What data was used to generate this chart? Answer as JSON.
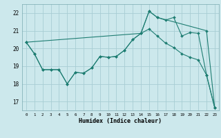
{
  "xlabel": "Humidex (Indice chaleur)",
  "background_color": "#cce8ec",
  "grid_color": "#a8cdd4",
  "line_color": "#1e7d72",
  "xlim": [
    -0.5,
    23.5
  ],
  "ylim": [
    16.5,
    22.5
  ],
  "yticks": [
    17,
    18,
    19,
    20,
    21,
    22
  ],
  "xticks": [
    0,
    1,
    2,
    3,
    4,
    5,
    6,
    7,
    8,
    9,
    10,
    11,
    12,
    13,
    14,
    15,
    16,
    17,
    18,
    19,
    20,
    21,
    22,
    23
  ],
  "series": [
    {
      "x": [
        0,
        1,
        2,
        3,
        4,
        5,
        6,
        7,
        8,
        9,
        10,
        11,
        12,
        13,
        14,
        15,
        16,
        22,
        23
      ],
      "y": [
        20.35,
        19.7,
        18.8,
        18.8,
        18.8,
        18.0,
        18.65,
        18.6,
        18.9,
        19.55,
        19.5,
        19.55,
        19.9,
        20.5,
        20.85,
        22.1,
        21.75,
        21.0,
        16.65
      ]
    },
    {
      "x": [
        0,
        14,
        15,
        16,
        17,
        18,
        19,
        20,
        21,
        22,
        23
      ],
      "y": [
        20.35,
        20.85,
        22.1,
        21.75,
        21.6,
        21.75,
        20.7,
        20.9,
        20.85,
        18.5,
        16.65
      ]
    },
    {
      "x": [
        0,
        1,
        2,
        3,
        4,
        5,
        6,
        7,
        8,
        9,
        10,
        11,
        12,
        13,
        14,
        15,
        16,
        17,
        18,
        19,
        20,
        21,
        22,
        23
      ],
      "y": [
        20.35,
        19.7,
        18.8,
        18.8,
        18.8,
        18.0,
        18.65,
        18.6,
        18.9,
        19.55,
        19.5,
        19.55,
        19.9,
        20.5,
        20.85,
        21.1,
        20.7,
        20.3,
        20.05,
        19.7,
        19.5,
        19.35,
        18.5,
        16.65
      ]
    }
  ]
}
